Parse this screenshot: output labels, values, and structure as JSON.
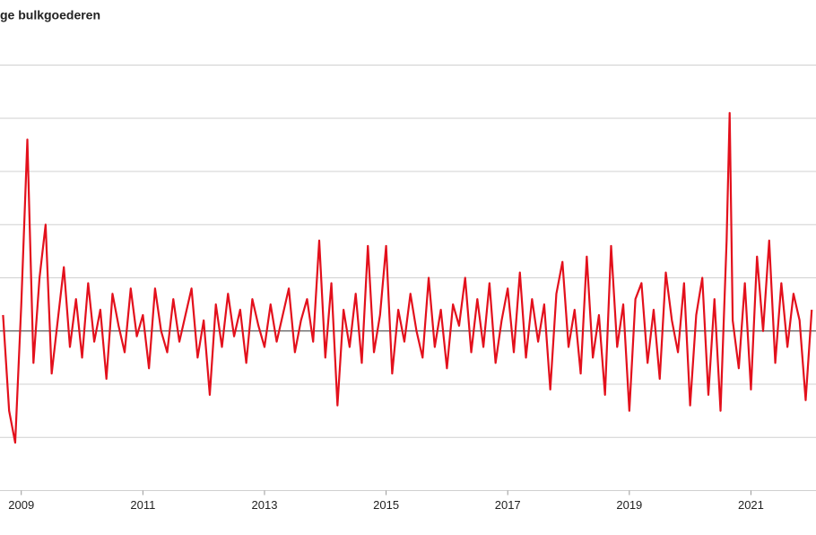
{
  "chart_data": {
    "type": "line",
    "title": "ge bulkgoederen",
    "x": [
      2008.7,
      2008.8,
      2008.9,
      2009.0,
      2009.1,
      2009.2,
      2009.3,
      2009.4,
      2009.5,
      2009.6,
      2009.7,
      2009.8,
      2009.9,
      2010.0,
      2010.1,
      2010.2,
      2010.3,
      2010.4,
      2010.5,
      2010.6,
      2010.7,
      2010.8,
      2010.9,
      2011.0,
      2011.1,
      2011.2,
      2011.3,
      2011.4,
      2011.5,
      2011.6,
      2011.7,
      2011.8,
      2011.9,
      2012.0,
      2012.1,
      2012.2,
      2012.3,
      2012.4,
      2012.5,
      2012.6,
      2012.7,
      2012.8,
      2012.9,
      2013.0,
      2013.1,
      2013.2,
      2013.3,
      2013.4,
      2013.5,
      2013.6,
      2013.7,
      2013.8,
      2013.9,
      2014.0,
      2014.1,
      2014.2,
      2014.3,
      2014.4,
      2014.5,
      2014.6,
      2014.7,
      2014.8,
      2014.9,
      2015.0,
      2015.1,
      2015.2,
      2015.3,
      2015.4,
      2015.5,
      2015.6,
      2015.7,
      2015.8,
      2015.9,
      2016.0,
      2016.1,
      2016.2,
      2016.3,
      2016.4,
      2016.5,
      2016.6,
      2016.7,
      2016.8,
      2016.9,
      2017.0,
      2017.1,
      2017.2,
      2017.3,
      2017.4,
      2017.5,
      2017.6,
      2017.7,
      2017.8,
      2017.9,
      2018.0,
      2018.1,
      2018.2,
      2018.3,
      2018.4,
      2018.5,
      2018.6,
      2018.7,
      2018.8,
      2018.9,
      2019.0,
      2019.1,
      2019.2,
      2019.3,
      2019.4,
      2019.5,
      2019.6,
      2019.7,
      2019.8,
      2019.9,
      2020.0,
      2020.1,
      2020.2,
      2020.3,
      2020.4,
      2020.5,
      2020.6,
      2020.65,
      2020.7,
      2020.8,
      2020.9,
      2021.0,
      2021.1,
      2021.2,
      2021.3,
      2021.4,
      2021.5,
      2021.6,
      2021.7,
      2021.8,
      2021.9,
      2022.0
    ],
    "series": [
      {
        "color": "#e3101c",
        "values": [
          0.3,
          -1.5,
          -2.1,
          0.5,
          3.6,
          -0.6,
          1.0,
          2.0,
          -0.8,
          0.2,
          1.2,
          -0.3,
          0.6,
          -0.5,
          0.9,
          -0.2,
          0.4,
          -0.9,
          0.7,
          0.1,
          -0.4,
          0.8,
          -0.1,
          0.3,
          -0.7,
          0.8,
          0.0,
          -0.4,
          0.6,
          -0.2,
          0.3,
          0.8,
          -0.5,
          0.2,
          -1.2,
          0.5,
          -0.3,
          0.7,
          -0.1,
          0.4,
          -0.6,
          0.6,
          0.1,
          -0.3,
          0.5,
          -0.2,
          0.3,
          0.8,
          -0.4,
          0.2,
          0.6,
          -0.2,
          1.7,
          -0.5,
          0.9,
          -1.4,
          0.4,
          -0.3,
          0.7,
          -0.6,
          1.6,
          -0.4,
          0.3,
          1.6,
          -0.8,
          0.4,
          -0.2,
          0.7,
          0.0,
          -0.5,
          1.0,
          -0.3,
          0.4,
          -0.7,
          0.5,
          0.1,
          1.0,
          -0.4,
          0.6,
          -0.3,
          0.9,
          -0.6,
          0.2,
          0.8,
          -0.4,
          1.1,
          -0.5,
          0.6,
          -0.2,
          0.5,
          -1.1,
          0.7,
          1.3,
          -0.3,
          0.4,
          -0.8,
          1.4,
          -0.5,
          0.3,
          -1.2,
          1.6,
          -0.3,
          0.5,
          -1.5,
          0.6,
          0.9,
          -0.6,
          0.4,
          -0.9,
          1.1,
          0.2,
          -0.4,
          0.9,
          -1.4,
          0.3,
          1.0,
          -1.2,
          0.6,
          -1.5,
          1.7,
          4.1,
          0.2,
          -0.7,
          0.9,
          -1.1,
          1.4,
          0.0,
          1.7,
          -0.6,
          0.9,
          -0.3,
          0.7,
          0.2,
          -1.3,
          0.4
        ]
      }
    ],
    "xlim": [
      2008.65,
      2022.07
    ],
    "xticks": [
      2009,
      2011,
      2013,
      2015,
      2017,
      2019,
      2021
    ],
    "ylim": [
      -3,
      5
    ],
    "yticks": [
      -3,
      -2,
      -1,
      0,
      1,
      2,
      3,
      4,
      5
    ],
    "grid": true
  }
}
